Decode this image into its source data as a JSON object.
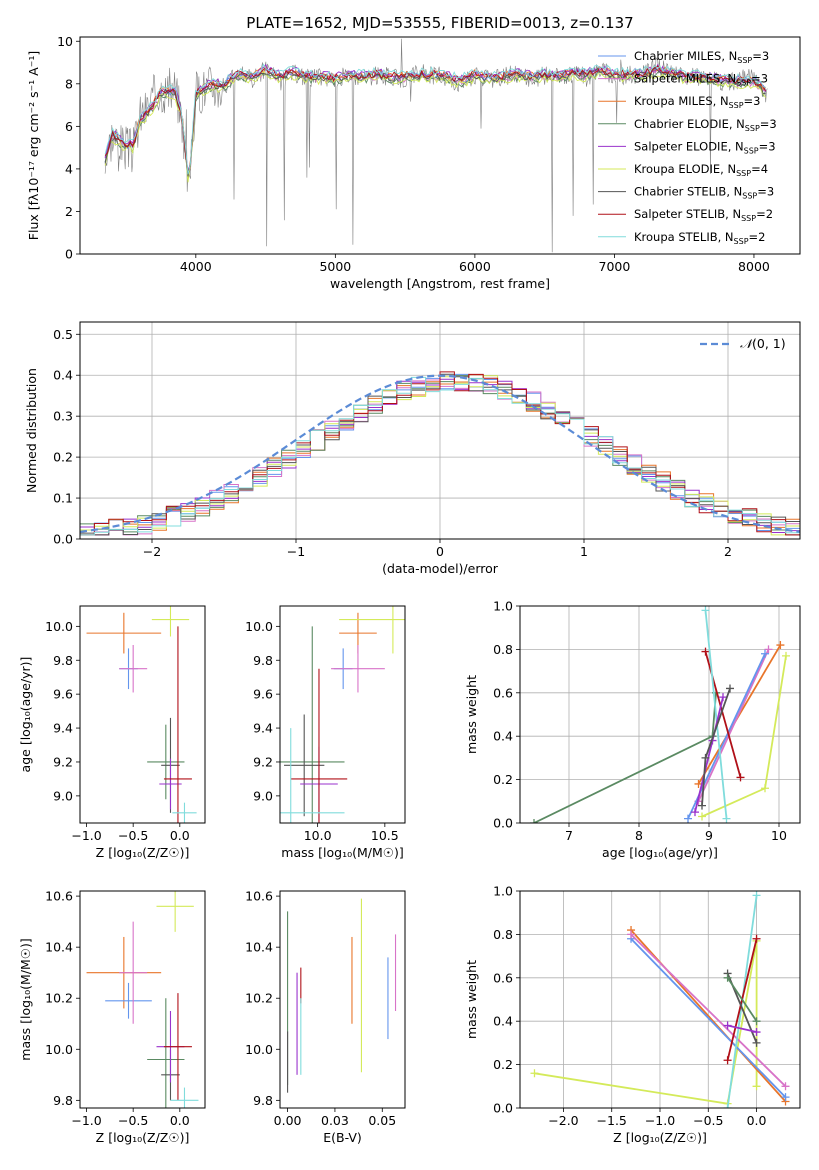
{
  "title": "PLATE=1652, MJD=53555, FIBERID=0013, z=0.137",
  "colors": {
    "chabrier_miles": "#6495ed",
    "salpeter_miles": "#d873c8",
    "kroupa_miles": "#e8752a",
    "chabrier_elodie": "#5a8a62",
    "salpeter_elodie": "#9932cc",
    "kroupa_elodie": "#d4ea5a",
    "chabrier_stelib": "#555555",
    "salpeter_stelib": "#b01018",
    "kroupa_stelib": "#80dcdc"
  },
  "chart_data": [
    {
      "id": "spectrum",
      "type": "line",
      "title": "PLATE=1652, MJD=53555, FIBERID=0013, z=0.137",
      "xlabel": "wavelength [Angstrom, rest frame]",
      "ylabel": "Flux [fλ10⁻¹⁷ erg cm⁻² s⁻¹ A⁻¹]",
      "xlim": [
        3170,
        8330
      ],
      "ylim": [
        0,
        10.2
      ],
      "xticks": [
        4000,
        5000,
        6000,
        7000,
        8000
      ],
      "yticks": [
        0,
        2,
        4,
        6,
        8,
        10
      ],
      "grid": false,
      "legend_position": "right",
      "observed": {
        "name": "data",
        "color": "#808080",
        "x": [
          3350,
          3400,
          3450,
          3500,
          3550,
          3600,
          3650,
          3700,
          3750,
          3800,
          3850,
          3900,
          3950,
          4000,
          4100,
          4200,
          4300,
          4400,
          4500,
          4600,
          4700,
          4800,
          4900,
          5000,
          5100,
          5200,
          5300,
          5400,
          5500,
          5600,
          5700,
          5800,
          5900,
          6000,
          6100,
          6200,
          6300,
          6400,
          6500,
          6600,
          6700,
          6800,
          6900,
          7000,
          7100,
          7200,
          7300,
          7400,
          7500,
          7600,
          7700,
          7800,
          7900,
          8000,
          8100
        ],
        "y": [
          4.4,
          5.6,
          5.2,
          5.0,
          4.8,
          6.5,
          6.8,
          7.4,
          7.8,
          7.6,
          7.8,
          6.4,
          3.0,
          7.6,
          7.9,
          7.8,
          8.5,
          8.2,
          8.7,
          8.1,
          8.5,
          8.3,
          8.3,
          8.2,
          8.4,
          8.3,
          8.4,
          8.3,
          8.2,
          8.5,
          8.4,
          8.3,
          8.0,
          8.4,
          8.2,
          8.3,
          8.5,
          8.2,
          8.4,
          8.3,
          8.5,
          8.3,
          8.7,
          8.3,
          8.4,
          8.4,
          8.8,
          8.5,
          8.3,
          8.3,
          8.2,
          8.0,
          8.2,
          8.3,
          7.3
        ]
      },
      "model": {
        "x": [
          3350,
          3400,
          3450,
          3500,
          3550,
          3600,
          3650,
          3700,
          3750,
          3800,
          3850,
          3900,
          3950,
          4000,
          4100,
          4200,
          4300,
          4400,
          4500,
          4600,
          4700,
          4800,
          4900,
          5000,
          5100,
          5200,
          5300,
          5400,
          5500,
          5600,
          5700,
          5800,
          5900,
          6000,
          6100,
          6200,
          6300,
          6400,
          6500,
          6600,
          6700,
          6800,
          6900,
          7000,
          7100,
          7200,
          7300,
          7400,
          7500,
          7600,
          7700,
          7800,
          7900,
          8000,
          8100
        ],
        "y": [
          4.4,
          5.6,
          5.3,
          5.1,
          5.0,
          6.3,
          6.6,
          7.0,
          7.6,
          7.6,
          7.6,
          6.5,
          3.2,
          7.5,
          7.9,
          7.9,
          8.4,
          8.3,
          8.6,
          8.3,
          8.5,
          8.3,
          8.3,
          8.2,
          8.4,
          8.3,
          8.4,
          8.3,
          8.3,
          8.4,
          8.4,
          8.3,
          8.1,
          8.4,
          8.2,
          8.3,
          8.4,
          8.3,
          8.4,
          8.3,
          8.5,
          8.4,
          8.6,
          8.4,
          8.4,
          8.4,
          8.6,
          8.5,
          8.3,
          8.3,
          8.2,
          8.1,
          8.1,
          8.1,
          7.5
        ]
      },
      "series": [
        {
          "name": "Chabrier MILES",
          "nssp": "3",
          "color_key": "chabrier_miles",
          "offset": 0.05
        },
        {
          "name": "Salpeter MILES",
          "nssp": "3",
          "color_key": "salpeter_miles",
          "offset": -0.05
        },
        {
          "name": "Kroupa MILES",
          "nssp": "3",
          "color_key": "kroupa_miles",
          "offset": 0.1
        },
        {
          "name": "Chabrier ELODIE",
          "nssp": "3",
          "color_key": "chabrier_elodie",
          "offset": -0.1
        },
        {
          "name": "Salpeter ELODIE",
          "nssp": "3",
          "color_key": "salpeter_elodie",
          "offset": 0.15
        },
        {
          "name": "Kroupa ELODIE",
          "nssp": "4",
          "color_key": "kroupa_elodie",
          "offset": -0.15
        },
        {
          "name": "Chabrier STELIB",
          "nssp": "3",
          "color_key": "chabrier_stelib",
          "offset": 0.0
        },
        {
          "name": "Salpeter STELIB",
          "nssp": "2",
          "color_key": "salpeter_stelib",
          "offset": 0.08
        },
        {
          "name": "Kroupa STELIB",
          "nssp": "2",
          "color_key": "kroupa_stelib",
          "offset": 0.2
        }
      ],
      "legend_nssp_prefix": "N",
      "legend_nssp_sub": "SSP"
    },
    {
      "id": "residuals",
      "type": "histogram",
      "xlabel": "(data-model)/error",
      "ylabel": "Normed distribution",
      "xlim": [
        -2.5,
        2.5
      ],
      "ylim": [
        0,
        0.53
      ],
      "xticks": [
        -2,
        -1,
        0,
        1,
        2
      ],
      "yticks": [
        0,
        0.1,
        0.2,
        0.3,
        0.4,
        0.5
      ],
      "grid": true,
      "legend_position": "top-right",
      "bin_width": 0.1,
      "bin_start": -2.5,
      "gaussian": {
        "name": "𝒩(0,1)",
        "label_main": "𝒩",
        "label_args": "(0, 1)",
        "color": "#5b8bd6",
        "mu": 0,
        "sigma": 1
      },
      "series": [
        {
          "color_key": "chabrier_miles",
          "seed": 1
        },
        {
          "color_key": "salpeter_miles",
          "seed": 2
        },
        {
          "color_key": "kroupa_miles",
          "seed": 3
        },
        {
          "color_key": "chabrier_elodie",
          "seed": 4
        },
        {
          "color_key": "salpeter_elodie",
          "seed": 5
        },
        {
          "color_key": "kroupa_elodie",
          "seed": 6
        },
        {
          "color_key": "chabrier_stelib",
          "seed": 7
        },
        {
          "color_key": "salpeter_stelib",
          "seed": 8
        },
        {
          "color_key": "kroupa_stelib",
          "seed": 9
        }
      ]
    },
    {
      "id": "z_age",
      "type": "errorbar",
      "xlabel": "Z [log₁₀(Z/Z☉)]",
      "ylabel": "age  [log₁₀(age/yr)]",
      "xlim": [
        -1.07,
        0.27
      ],
      "ylim": [
        8.84,
        10.12
      ],
      "xticks": [
        -1.0,
        -0.5,
        0.0
      ],
      "yticks": [
        9.0,
        9.2,
        9.4,
        9.6,
        9.8,
        10.0
      ],
      "points": [
        {
          "color_key": "kroupa_miles",
          "x": -0.6,
          "xerr": 0.4,
          "y": 9.96,
          "yerr": 0.12
        },
        {
          "color_key": "chabrier_miles",
          "x": -0.55,
          "xerr": 0.1,
          "y": 9.75,
          "yerr": 0.12
        },
        {
          "color_key": "salpeter_miles",
          "x": -0.5,
          "xerr": 0.15,
          "y": 9.75,
          "yerr": 0.14
        },
        {
          "color_key": "kroupa_elodie",
          "x": -0.1,
          "xerr": 0.2,
          "y": 10.04,
          "yerr": 0.1
        },
        {
          "color_key": "chabrier_elodie",
          "x": -0.15,
          "xerr": 0.2,
          "y": 9.2,
          "yerr": 0.22
        },
        {
          "color_key": "chabrier_stelib",
          "x": -0.1,
          "xerr": 0.1,
          "y": 9.18,
          "yerr": 0.28
        },
        {
          "color_key": "salpeter_elodie",
          "x": -0.1,
          "xerr": 0.12,
          "y": 9.07,
          "yerr": 0.15
        },
        {
          "color_key": "salpeter_stelib",
          "x": -0.02,
          "xerr": 0.15,
          "y": 9.1,
          "yerr": 0.9
        },
        {
          "color_key": "kroupa_stelib",
          "x": 0.05,
          "xerr": 0.13,
          "y": 8.9,
          "yerr": 0.06
        }
      ]
    },
    {
      "id": "mass_age",
      "type": "errorbar",
      "xlabel": "mass [log₁₀(M/M☉)]",
      "ylabel": "",
      "xlim": [
        9.72,
        10.65
      ],
      "ylim": [
        8.84,
        10.12
      ],
      "xticks": [
        10.0,
        10.5
      ],
      "yticks": [
        9.0,
        9.2,
        9.4,
        9.6,
        9.8,
        10.0
      ],
      "points": [
        {
          "color_key": "kroupa_miles",
          "x": 10.3,
          "xerr": 0.14,
          "y": 9.96,
          "yerr": 0.12
        },
        {
          "color_key": "chabrier_miles",
          "x": 10.19,
          "xerr": 0.07,
          "y": 9.75,
          "yerr": 0.12
        },
        {
          "color_key": "salpeter_miles",
          "x": 10.3,
          "xerr": 0.2,
          "y": 9.75,
          "yerr": 0.14
        },
        {
          "color_key": "kroupa_elodie",
          "x": 10.56,
          "xerr": 0.4,
          "y": 10.04,
          "yerr": 0.2
        },
        {
          "color_key": "chabrier_elodie",
          "x": 9.96,
          "xerr": 0.24,
          "y": 9.2,
          "yerr": 0.8
        },
        {
          "color_key": "chabrier_stelib",
          "x": 9.9,
          "xerr": 0.15,
          "y": 9.18,
          "yerr": 0.3
        },
        {
          "color_key": "salpeter_elodie",
          "x": 10.01,
          "xerr": 0.14,
          "y": 9.07,
          "yerr": 0.22
        },
        {
          "color_key": "salpeter_stelib",
          "x": 10.01,
          "xerr": 0.21,
          "y": 9.1,
          "yerr": 0.65
        },
        {
          "color_key": "kroupa_stelib",
          "x": 9.8,
          "xerr": 0.4,
          "y": 8.9,
          "yerr": 0.5
        }
      ]
    },
    {
      "id": "age_weight",
      "type": "line",
      "xlabel": "age  [log₁₀(age/yr)]",
      "ylabel": "mass weight",
      "xlim": [
        6.3,
        10.3
      ],
      "ylim": [
        0,
        1.0
      ],
      "xticks": [
        7,
        8,
        9,
        10
      ],
      "yticks": [
        0.0,
        0.2,
        0.4,
        0.6,
        0.8,
        1.0
      ],
      "grid": true,
      "series": [
        {
          "color_key": "chabrier_elodie",
          "x": [
            6.5,
            9.05,
            9.1
          ],
          "y": [
            0.0,
            0.4,
            0.6
          ]
        },
        {
          "color_key": "kroupa_miles",
          "x": [
            8.85,
            10.02
          ],
          "y": [
            0.18,
            0.82
          ]
        },
        {
          "color_key": "salpeter_miles",
          "x": [
            8.85,
            9.85
          ],
          "y": [
            0.1,
            0.8
          ]
        },
        {
          "color_key": "chabrier_miles",
          "x": [
            8.7,
            9.8
          ],
          "y": [
            0.02,
            0.78
          ]
        },
        {
          "color_key": "kroupa_elodie",
          "x": [
            8.9,
            9.8,
            10.1
          ],
          "y": [
            0.03,
            0.16,
            0.77
          ]
        },
        {
          "color_key": "salpeter_stelib",
          "x": [
            8.95,
            9.45
          ],
          "y": [
            0.79,
            0.21
          ]
        },
        {
          "color_key": "kroupa_stelib",
          "x": [
            8.95,
            9.25
          ],
          "y": [
            0.98,
            0.02
          ]
        },
        {
          "color_key": "salpeter_elodie",
          "x": [
            8.8,
            9.05,
            9.2
          ],
          "y": [
            0.05,
            0.38,
            0.58
          ]
        },
        {
          "color_key": "chabrier_stelib",
          "x": [
            8.9,
            8.95,
            9.3
          ],
          "y": [
            0.08,
            0.3,
            0.62
          ]
        }
      ]
    },
    {
      "id": "z_mass",
      "type": "errorbar",
      "xlabel": "Z [log₁₀(Z/Z☉)]",
      "ylabel": "mass [log₁₀(M/M☉)]",
      "xlim": [
        -1.07,
        0.27
      ],
      "ylim": [
        9.77,
        10.62
      ],
      "xticks": [
        -1.0,
        -0.5,
        0.0
      ],
      "yticks": [
        9.8,
        10.0,
        10.2,
        10.4,
        10.6
      ],
      "points": [
        {
          "color_key": "kroupa_miles",
          "x": -0.6,
          "xerr": 0.4,
          "y": 10.3,
          "yerr": 0.14
        },
        {
          "color_key": "chabrier_miles",
          "x": -0.55,
          "xerr": 0.25,
          "y": 10.19,
          "yerr": 0.07
        },
        {
          "color_key": "salpeter_miles",
          "x": -0.5,
          "xerr": 0.15,
          "y": 10.3,
          "yerr": 0.2
        },
        {
          "color_key": "kroupa_elodie",
          "x": -0.05,
          "xerr": 0.2,
          "y": 10.56,
          "yerr": 0.1
        },
        {
          "color_key": "chabrier_elodie",
          "x": -0.15,
          "xerr": 0.2,
          "y": 9.96,
          "yerr": 0.24
        },
        {
          "color_key": "chabrier_stelib",
          "x": -0.1,
          "xerr": 0.1,
          "y": 9.9,
          "yerr": 0.1
        },
        {
          "color_key": "salpeter_elodie",
          "x": -0.1,
          "xerr": 0.15,
          "y": 10.01,
          "yerr": 0.14
        },
        {
          "color_key": "salpeter_stelib",
          "x": -0.02,
          "xerr": 0.15,
          "y": 10.01,
          "yerr": 0.21
        },
        {
          "color_key": "kroupa_stelib",
          "x": 0.05,
          "xerr": 0.15,
          "y": 9.8,
          "yerr": 0.05
        }
      ]
    },
    {
      "id": "ebv_mass",
      "type": "errorbar",
      "xlabel": "E(B-V)",
      "ylabel": "",
      "xlim": [
        -0.004,
        0.062
      ],
      "ylim": [
        9.77,
        10.62
      ],
      "xticks": [
        0.0,
        0.025,
        0.05
      ],
      "yticks": [
        9.8,
        10.0,
        10.2,
        10.4,
        10.6
      ],
      "points": [
        {
          "color_key": "chabrier_elodie",
          "x": 0.0,
          "xerr": 0,
          "y": 10.2,
          "yerr": 0.34
        },
        {
          "color_key": "chabrier_stelib",
          "x": 0.0,
          "xerr": 0,
          "y": 9.95,
          "yerr": 0.12
        },
        {
          "color_key": "salpeter_elodie",
          "x": 0.005,
          "xerr": 0,
          "y": 10.1,
          "yerr": 0.2
        },
        {
          "color_key": "salpeter_stelib",
          "x": 0.007,
          "xerr": 0,
          "y": 10.25,
          "yerr": 0.07
        },
        {
          "color_key": "kroupa_stelib",
          "x": 0.007,
          "xerr": 0,
          "y": 10.05,
          "yerr": 0.15
        },
        {
          "color_key": "kroupa_miles",
          "x": 0.034,
          "xerr": 0,
          "y": 10.27,
          "yerr": 0.17
        },
        {
          "color_key": "kroupa_elodie",
          "x": 0.039,
          "xerr": 0,
          "y": 10.25,
          "yerr": 0.34
        },
        {
          "color_key": "chabrier_miles",
          "x": 0.053,
          "xerr": 0,
          "y": 10.2,
          "yerr": 0.16
        },
        {
          "color_key": "salpeter_miles",
          "x": 0.057,
          "xerr": 0,
          "y": 10.3,
          "yerr": 0.15
        }
      ]
    },
    {
      "id": "z_weight",
      "type": "line",
      "xlabel": "Z [log₁₀(Z/Z☉)]",
      "ylabel": "mass weight",
      "xlim": [
        -2.45,
        0.45
      ],
      "ylim": [
        0,
        1.0
      ],
      "xticks": [
        -2.0,
        -1.5,
        -1.0,
        -0.5,
        0.0
      ],
      "yticks": [
        0.0,
        0.2,
        0.4,
        0.6,
        0.8,
        1.0
      ],
      "grid": true,
      "series": [
        {
          "color_key": "kroupa_elodie",
          "x": [
            -2.3,
            -0.3,
            0.0,
            0.0
          ],
          "y": [
            0.16,
            0.02,
            0.77,
            0.1
          ]
        },
        {
          "color_key": "kroupa_miles",
          "x": [
            -1.3,
            0.3
          ],
          "y": [
            0.82,
            0.03
          ]
        },
        {
          "color_key": "chabrier_miles",
          "x": [
            -1.3,
            0.3
          ],
          "y": [
            0.78,
            0.05
          ]
        },
        {
          "color_key": "salpeter_miles",
          "x": [
            -1.3,
            0.3
          ],
          "y": [
            0.8,
            0.1
          ]
        },
        {
          "color_key": "kroupa_stelib",
          "x": [
            -0.3,
            0.0
          ],
          "y": [
            0.0,
            0.98
          ]
        },
        {
          "color_key": "salpeter_stelib",
          "x": [
            -0.3,
            0.0
          ],
          "y": [
            0.22,
            0.78
          ]
        },
        {
          "color_key": "chabrier_stelib",
          "x": [
            -0.3,
            0.0
          ],
          "y": [
            0.62,
            0.3
          ]
        },
        {
          "color_key": "salpeter_elodie",
          "x": [
            -0.3,
            0.0
          ],
          "y": [
            0.38,
            0.35
          ]
        },
        {
          "color_key": "chabrier_elodie",
          "x": [
            -0.3,
            0.0
          ],
          "y": [
            0.6,
            0.4
          ]
        }
      ]
    }
  ]
}
